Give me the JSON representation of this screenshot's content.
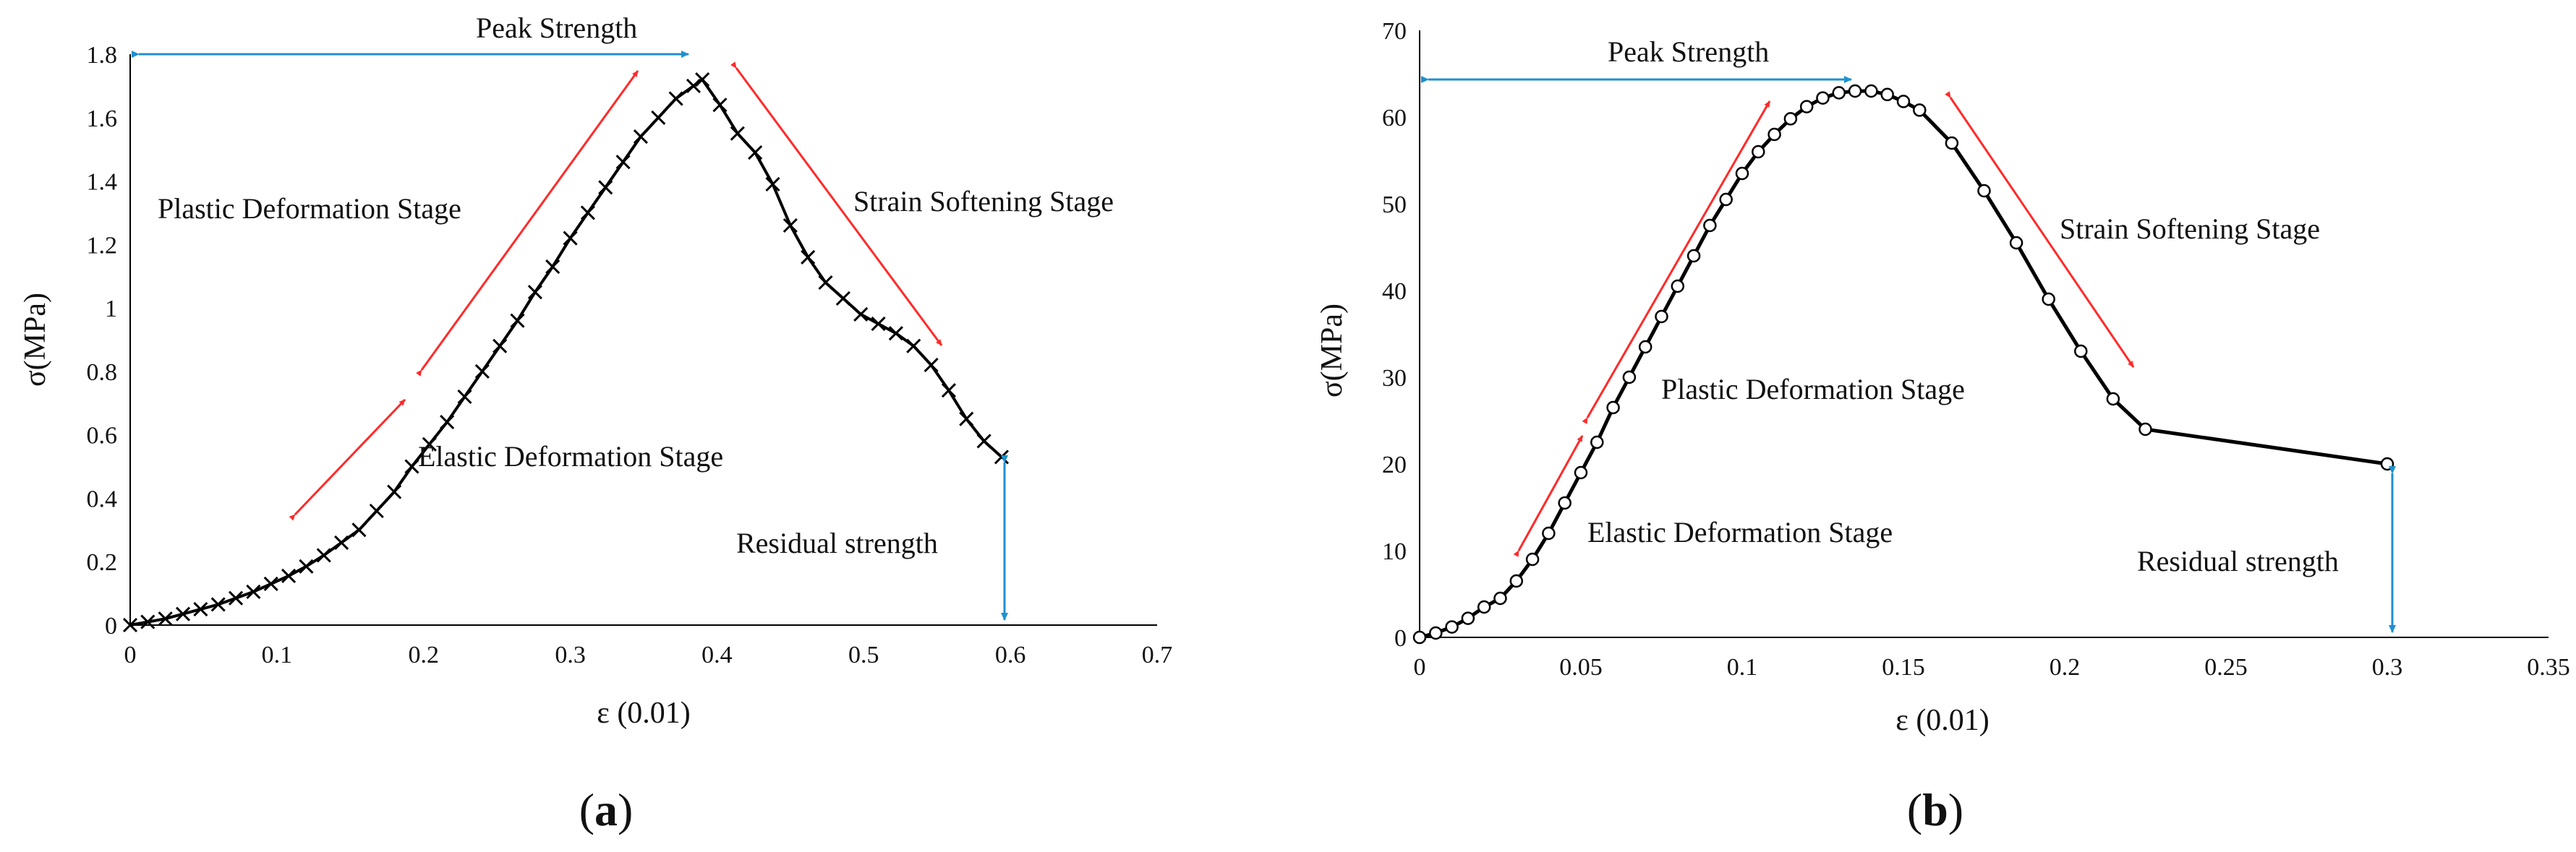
{
  "colors": {
    "curve": "#000000",
    "stage_arrow": "#ff2a2a",
    "strength_arrow": "#1f8fd0",
    "axis": "#000000"
  },
  "chart_data": [
    {
      "type": "line",
      "panel_label": "(a)",
      "panel_letter": "a",
      "marker": "x",
      "xlabel": "ε (0.01)",
      "ylabel": "σ(MPa)",
      "xlim": [
        0,
        0.7
      ],
      "ylim": [
        0,
        1.8
      ],
      "xticks": [
        "0",
        "0.1",
        "0.2",
        "0.3",
        "0.4",
        "0.5",
        "0.6",
        "0.7"
      ],
      "yticks": [
        "0",
        "0.2",
        "0.4",
        "0.6",
        "0.8",
        "1",
        "1.2",
        "1.4",
        "1.6",
        "1.8"
      ],
      "xtick_values": [
        0,
        0.1,
        0.2,
        0.3,
        0.4,
        0.5,
        0.6,
        0.7
      ],
      "ytick_values": [
        0,
        0.2,
        0.4,
        0.6,
        0.8,
        1.0,
        1.2,
        1.4,
        1.6,
        1.8
      ],
      "x": [
        0,
        0.012,
        0.024,
        0.036,
        0.048,
        0.06,
        0.072,
        0.084,
        0.096,
        0.108,
        0.12,
        0.132,
        0.144,
        0.156,
        0.168,
        0.18,
        0.192,
        0.204,
        0.216,
        0.228,
        0.24,
        0.252,
        0.264,
        0.276,
        0.288,
        0.3,
        0.312,
        0.324,
        0.336,
        0.348,
        0.36,
        0.372,
        0.384,
        0.39,
        0.402,
        0.414,
        0.426,
        0.438,
        0.45,
        0.462,
        0.474,
        0.486,
        0.498,
        0.51,
        0.522,
        0.534,
        0.546,
        0.558,
        0.57,
        0.582,
        0.594
      ],
      "y": [
        0,
        0.01,
        0.02,
        0.035,
        0.05,
        0.065,
        0.085,
        0.105,
        0.13,
        0.155,
        0.185,
        0.22,
        0.26,
        0.3,
        0.36,
        0.42,
        0.5,
        0.57,
        0.64,
        0.72,
        0.8,
        0.88,
        0.96,
        1.05,
        1.13,
        1.22,
        1.3,
        1.38,
        1.46,
        1.54,
        1.6,
        1.66,
        1.7,
        1.72,
        1.64,
        1.55,
        1.49,
        1.39,
        1.26,
        1.16,
        1.08,
        1.03,
        0.98,
        0.95,
        0.92,
        0.88,
        0.82,
        0.74,
        0.65,
        0.58,
        0.53
      ],
      "annotations": {
        "peak": "Peak Strength",
        "plastic": "Plastic Deformation Stage",
        "softening": "Strain Softening Stage",
        "elastic": "Elastic Deformation Stage",
        "residual": "Residual strength"
      }
    },
    {
      "type": "line",
      "panel_label": "(b)",
      "panel_letter": "b",
      "marker": "o",
      "xlabel": "ε (0.01)",
      "ylabel": "σ(MPa)",
      "xlim": [
        0,
        0.35
      ],
      "ylim": [
        0,
        70
      ],
      "xticks": [
        "0",
        "0.05",
        "0.1",
        "0.15",
        "0.2",
        "0.25",
        "0.3",
        "0.35"
      ],
      "yticks": [
        "0",
        "10",
        "20",
        "30",
        "40",
        "50",
        "60",
        "70"
      ],
      "xtick_values": [
        0,
        0.05,
        0.1,
        0.15,
        0.2,
        0.25,
        0.3,
        0.35
      ],
      "ytick_values": [
        0,
        10,
        20,
        30,
        40,
        50,
        60,
        70
      ],
      "x": [
        0,
        0.005,
        0.01,
        0.015,
        0.02,
        0.025,
        0.03,
        0.035,
        0.04,
        0.045,
        0.05,
        0.055,
        0.06,
        0.065,
        0.07,
        0.075,
        0.08,
        0.085,
        0.09,
        0.095,
        0.1,
        0.105,
        0.11,
        0.115,
        0.12,
        0.125,
        0.13,
        0.135,
        0.14,
        0.145,
        0.15,
        0.155,
        0.165,
        0.175,
        0.185,
        0.195,
        0.205,
        0.215,
        0.225,
        0.3
      ],
      "y": [
        0,
        0.5,
        1.2,
        2.2,
        3.5,
        4.5,
        6.5,
        9.0,
        12.0,
        15.5,
        19.0,
        22.5,
        26.5,
        30.0,
        33.5,
        37.0,
        40.5,
        44.0,
        47.5,
        50.5,
        53.5,
        56.0,
        58.0,
        59.8,
        61.2,
        62.2,
        62.8,
        63.0,
        63.0,
        62.6,
        61.8,
        60.8,
        57.0,
        51.5,
        45.5,
        39.0,
        33.0,
        27.5,
        24.0,
        20.0
      ],
      "annotations": {
        "peak": "Peak Strength",
        "plastic": "Plastic Deformation Stage",
        "softening": "Strain Softening Stage",
        "elastic": "Elastic Deformation Stage",
        "residual": "Residual strength"
      }
    }
  ]
}
